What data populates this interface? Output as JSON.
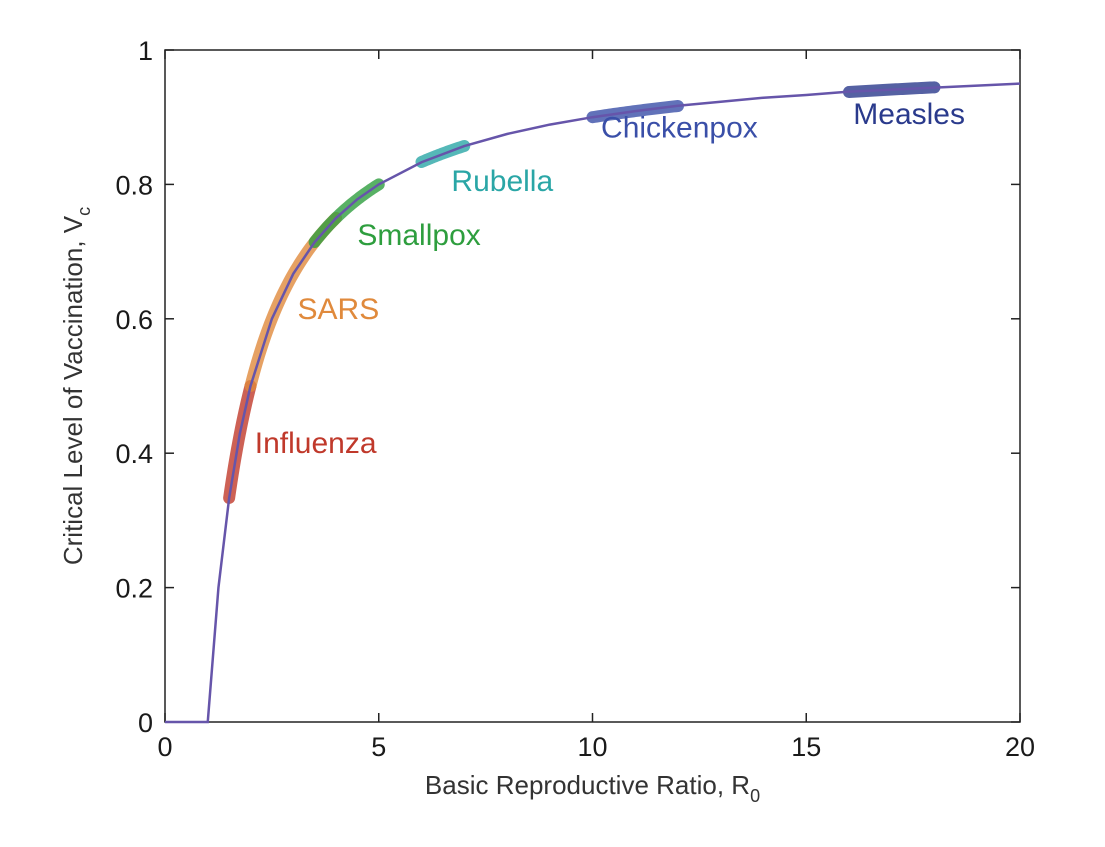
{
  "chart_data": {
    "type": "line",
    "title": "",
    "xlabel": "Basic Reproductive Ratio, R",
    "xlabel_sub": "0",
    "ylabel": "Critical Level of Vaccination, V",
    "ylabel_sub": "c",
    "xlim": [
      0,
      20
    ],
    "ylim": [
      0,
      1
    ],
    "xticks": [
      "0",
      "5",
      "10",
      "15",
      "20"
    ],
    "yticks": [
      "0",
      "0.2",
      "0.4",
      "0.6",
      "0.8",
      "1"
    ],
    "grid": false,
    "curve": {
      "description_formula": "Vc = 1 - 1/R0 for R0 > 1, else 0",
      "x": [
        0,
        1,
        1.25,
        1.5,
        1.75,
        2,
        2.5,
        3,
        3.5,
        4,
        4.5,
        5,
        6,
        7,
        8,
        9,
        10,
        11,
        12,
        13,
        14,
        15,
        16,
        17,
        18,
        19,
        20
      ],
      "y": [
        0,
        0,
        0.2,
        0.333,
        0.429,
        0.5,
        0.6,
        0.667,
        0.714,
        0.75,
        0.778,
        0.8,
        0.833,
        0.857,
        0.875,
        0.889,
        0.9,
        0.909,
        0.917,
        0.923,
        0.929,
        0.933,
        0.938,
        0.941,
        0.944,
        0.947,
        0.95
      ],
      "color": "#6655aa"
    },
    "ranges": [
      {
        "name": "Influenza",
        "r0": [
          1.5,
          2.0
        ],
        "color": "#c0392b",
        "label_at": [
          2.1,
          0.4
        ]
      },
      {
        "name": "SARS",
        "r0": [
          2.0,
          4.0
        ],
        "color": "#e08a3c",
        "label_at": [
          3.1,
          0.6
        ]
      },
      {
        "name": "Smallpox",
        "r0": [
          3.5,
          5.0
        ],
        "color": "#2e9e3e",
        "label_at": [
          4.5,
          0.71
        ]
      },
      {
        "name": "Rubella",
        "r0": [
          6.0,
          7.0
        ],
        "color": "#2aa6a6",
        "label_at": [
          6.7,
          0.79
        ]
      },
      {
        "name": "Chickenpox",
        "r0": [
          10.0,
          12.0
        ],
        "color": "#3a4fa8",
        "label_at": [
          10.2,
          0.87
        ]
      },
      {
        "name": "Measles",
        "r0": [
          16.0,
          18.0
        ],
        "color": "#2a3a8c",
        "label_at": [
          16.1,
          0.89
        ]
      }
    ]
  }
}
